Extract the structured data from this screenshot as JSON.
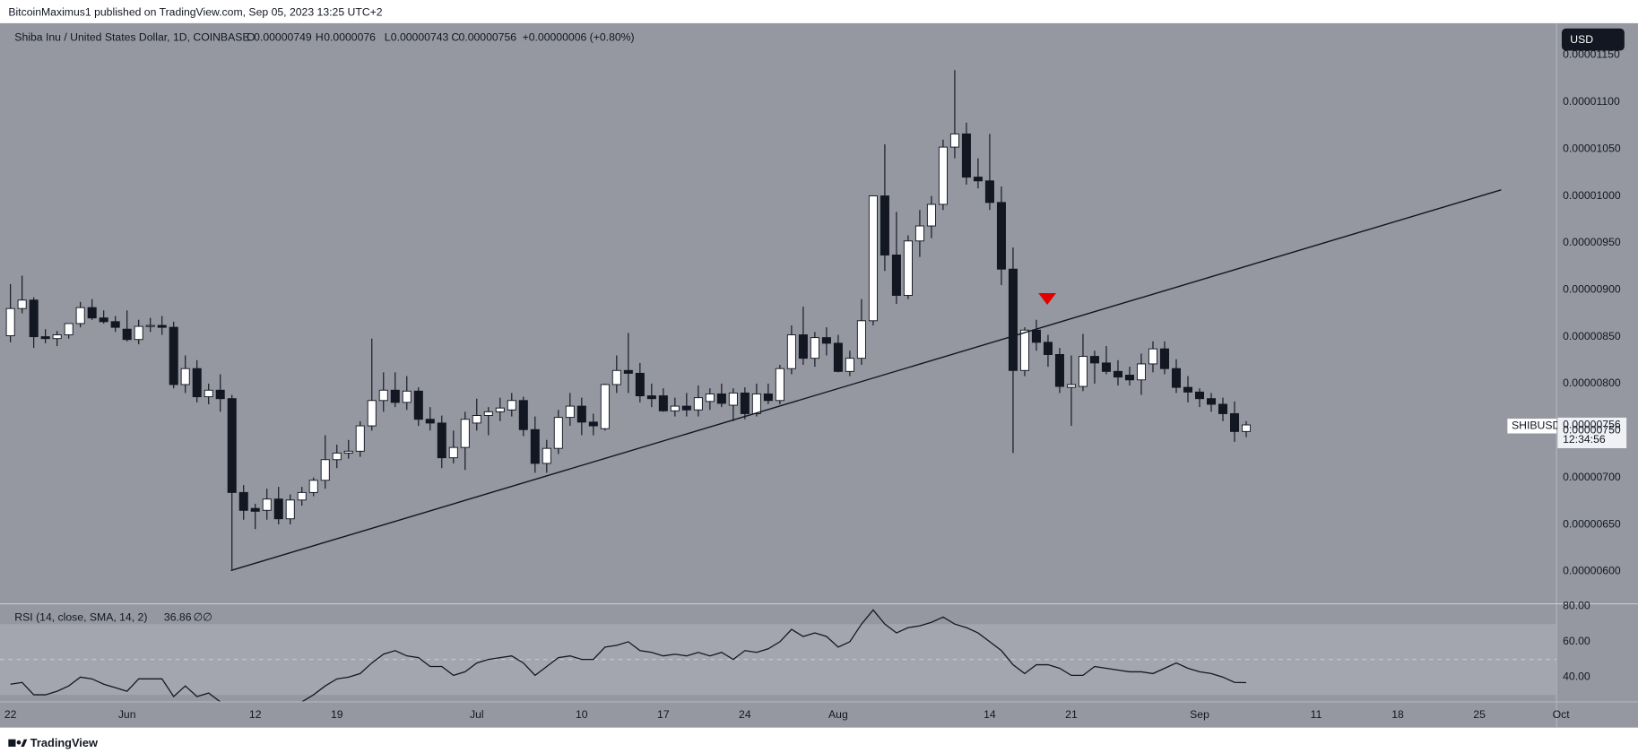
{
  "header": {
    "publisher": "BitcoinMaximus1 published on TradingView.com, Sep 05, 2023 13:25 UTC+2",
    "footer": "TradingView"
  },
  "chart_data": {
    "type": "candlestick",
    "title": "Shiba Inu / United States Dollar, 1D, COINBASE",
    "symbol": "SHIBUSD",
    "currency": "USD",
    "countdown": "12:34:56",
    "change": "+0.00000006 (+0.80%)",
    "legend_keys": [
      "O",
      "H",
      "L",
      "C"
    ],
    "categories": [
      "22",
      null,
      null,
      null,
      null,
      null,
      null,
      null,
      null,
      null,
      "Jun",
      null,
      null,
      null,
      null,
      null,
      null,
      null,
      null,
      null,
      null,
      "12",
      null,
      null,
      null,
      null,
      null,
      null,
      "19",
      null,
      null,
      null,
      null,
      null,
      null,
      null,
      null,
      null,
      null,
      null,
      "Jul",
      null,
      null,
      null,
      null,
      null,
      null,
      null,
      null,
      "10",
      null,
      null,
      null,
      null,
      null,
      null,
      "17",
      null,
      null,
      null,
      null,
      null,
      null,
      "24",
      null,
      null,
      null,
      null,
      null,
      null,
      null,
      "Aug",
      null,
      null,
      null,
      null,
      null,
      null,
      null,
      null,
      null,
      null,
      null,
      null,
      "14",
      null,
      null,
      null,
      null,
      null,
      null,
      "21",
      null,
      null,
      null,
      null,
      null,
      null,
      null,
      null,
      null,
      null,
      "Sep",
      null,
      null,
      null,
      null,
      null,
      null,
      null,
      null,
      null,
      "11",
      null,
      null,
      null,
      null,
      null,
      null,
      "18",
      null,
      null,
      null,
      null,
      null,
      null,
      "25",
      null,
      null,
      null,
      null,
      null,
      null,
      "Oct"
    ],
    "open": [
      8.51e-06,
      8.8e-06,
      8.89e-06,
      8.5e-06,
      8.48e-06,
      8.52e-06,
      8.64e-06,
      8.81e-06,
      8.7e-06,
      8.66e-06,
      8.58e-06,
      8.47e-06,
      8.61e-06,
      8.62e-06,
      8.6e-06,
      7.99e-06,
      8.16e-06,
      7.86e-06,
      7.93e-06,
      7.84e-06,
      6.84e-06,
      6.67e-06,
      6.65e-06,
      6.77e-06,
      6.56e-06,
      6.76e-06,
      6.84e-06,
      6.97e-06,
      7.19e-06,
      7.26e-06,
      7.28e-06,
      7.55e-06,
      7.82e-06,
      7.93e-06,
      7.8e-06,
      7.92e-06,
      7.62e-06,
      7.58e-06,
      7.21e-06,
      7.32e-06,
      7.58e-06,
      7.66e-06,
      7.7e-06,
      7.72e-06,
      7.82e-06,
      7.51e-06,
      7.15e-06,
      7.31e-06,
      7.64e-06,
      7.76e-06,
      7.59e-06,
      7.52e-06,
      7.99e-06,
      8.14e-06,
      8.11e-06,
      7.87e-06,
      7.87e-06,
      7.71e-06,
      7.76e-06,
      7.72e-06,
      7.81e-06,
      7.89e-06,
      7.77e-06,
      7.9e-06,
      7.68e-06,
      7.89e-06,
      7.82e-06,
      8.16e-06,
      8.52e-06,
      8.27e-06,
      8.49e-06,
      8.43e-06,
      8.13e-06,
      8.27e-06,
      8.67e-06,
      1e-05,
      9.37e-06,
      8.94e-06,
      9.52e-06,
      9.68e-06,
      9.91e-06,
      1.052e-05,
      1.066e-05,
      1.02e-05,
      1.016e-05,
      9.93e-06,
      9.22e-06,
      8.14e-06,
      8.57e-06,
      8.44e-06,
      8.31e-06,
      7.96e-06,
      7.97e-06,
      8.29e-06,
      8.22e-06,
      8.13e-06,
      8.09e-06,
      8.04e-06,
      8.21e-06,
      8.37e-06,
      8.16e-06,
      7.96e-06,
      7.91e-06,
      7.84e-06,
      7.78e-06,
      7.68e-06,
      7.49e-06,
      null,
      null,
      null,
      null,
      null,
      null,
      null,
      null,
      null,
      null,
      null,
      null,
      null,
      null,
      null,
      null,
      null,
      null,
      null,
      null,
      null,
      null,
      null,
      null,
      null,
      null,
      null
    ],
    "high": [
      9.06e-06,
      9.15e-06,
      8.92e-06,
      8.58e-06,
      8.56e-06,
      8.62e-06,
      8.87e-06,
      8.9e-06,
      8.78e-06,
      8.72e-06,
      8.78e-06,
      8.68e-06,
      8.7e-06,
      8.72e-06,
      8.66e-06,
      8.3e-06,
      8.25e-06,
      8e-06,
      8.1e-06,
      7.88e-06,
      6.92e-06,
      6.72e-06,
      6.88e-06,
      6.9e-06,
      6.82e-06,
      6.9e-06,
      7e-06,
      7.45e-06,
      7.35e-06,
      7.4e-06,
      7.6e-06,
      8.48e-06,
      8.12e-06,
      8.12e-06,
      8.08e-06,
      7.96e-06,
      7.75e-06,
      7.66e-06,
      7.5e-06,
      7.7e-06,
      7.84e-06,
      7.75e-06,
      7.85e-06,
      7.9e-06,
      7.86e-06,
      7.65e-06,
      7.4e-06,
      7.72e-06,
      7.9e-06,
      7.85e-06,
      7.68e-06,
      8e-06,
      8.3e-06,
      8.54e-06,
      8.22e-06,
      8e-06,
      7.95e-06,
      7.85e-06,
      7.9e-06,
      7.98e-06,
      7.95e-06,
      8e-06,
      7.95e-06,
      7.96e-06,
      8e-06,
      8e-06,
      8.2e-06,
      8.62e-06,
      8.82e-06,
      8.55e-06,
      8.6e-06,
      8.52e-06,
      8.35e-06,
      8.9e-06,
      1e-05,
      1.055e-05,
      9.83e-06,
      9.58e-06,
      9.85e-06,
      1e-05,
      1.06e-05,
      1.134e-05,
      1.078e-05,
      1.04e-05,
      1.066e-05,
      1.01e-05,
      9.45e-06,
      8.6e-06,
      8.68e-06,
      8.52e-06,
      8.38e-06,
      8.3e-06,
      8.53e-06,
      8.35e-06,
      8.4e-06,
      8.25e-06,
      8.18e-06,
      8.32e-06,
      8.45e-06,
      8.45e-06,
      8.26e-06,
      8.08e-06,
      7.95e-06,
      7.9e-06,
      7.85e-06,
      7.81e-06,
      7.6e-06,
      null,
      null,
      null,
      null,
      null,
      null,
      null,
      null,
      null,
      null,
      null,
      null,
      null,
      null,
      null,
      null,
      null,
      null,
      null,
      null,
      null,
      null,
      null,
      null,
      null,
      null,
      null
    ],
    "low": [
      8.44e-06,
      8.75e-06,
      8.38e-06,
      8.43e-06,
      8.4e-06,
      8.48e-06,
      8.6e-06,
      8.68e-06,
      8.64e-06,
      8.55e-06,
      8.45e-06,
      8.42e-06,
      8.55e-06,
      8.52e-06,
      7.95e-06,
      7.9e-06,
      7.8e-06,
      7.78e-06,
      7.7e-06,
      6.02e-06,
      6.55e-06,
      6.45e-06,
      6.55e-06,
      6.5e-06,
      6.5e-06,
      6.7e-06,
      6.8e-06,
      6.88e-06,
      7.1e-06,
      7.2e-06,
      7.22e-06,
      7.5e-06,
      7.7e-06,
      7.75e-06,
      7.72e-06,
      7.55e-06,
      7.5e-06,
      7.1e-06,
      7.15e-06,
      7.08e-06,
      7.5e-06,
      7.45e-06,
      7.6e-06,
      7.65e-06,
      7.44e-06,
      7.05e-06,
      7.05e-06,
      7.25e-06,
      7.55e-06,
      7.45e-06,
      7.45e-06,
      7.5e-06,
      7.9e-06,
      7.9e-06,
      7.8e-06,
      7.75e-06,
      7.7e-06,
      7.65e-06,
      7.65e-06,
      7.65e-06,
      7.72e-06,
      7.75e-06,
      7.6e-06,
      7.62e-06,
      7.65e-06,
      7.78e-06,
      7.78e-06,
      8.1e-06,
      8.2e-06,
      8.18e-06,
      8.3e-06,
      8.12e-06,
      8.08e-06,
      8.2e-06,
      8.62e-06,
      9.2e-06,
      8.85e-06,
      8.9e-06,
      9.35e-06,
      9.55e-06,
      9.85e-06,
      1.04e-05,
      1.012e-05,
      1.008e-05,
      9.85e-06,
      9.05e-06,
      7.26e-06,
      8.08e-06,
      8.35e-06,
      8.18e-06,
      7.9e-06,
      7.55e-06,
      7.92e-06,
      8e-06,
      8.1e-06,
      7.98e-06,
      7.98e-06,
      7.88e-06,
      8.12e-06,
      8.1e-06,
      7.9e-06,
      7.8e-06,
      7.75e-06,
      7.7e-06,
      7.6e-06,
      7.38e-06,
      7.43e-06,
      null,
      null,
      null,
      null,
      null,
      null,
      null,
      null,
      null,
      null,
      null,
      null,
      null,
      null,
      null,
      null,
      null,
      null,
      null,
      null,
      null,
      null,
      null,
      null,
      null,
      null,
      null
    ],
    "close": [
      8.8e-06,
      8.89e-06,
      8.5e-06,
      8.48e-06,
      8.52e-06,
      8.64e-06,
      8.81e-06,
      8.7e-06,
      8.66e-06,
      8.6e-06,
      8.47e-06,
      8.61e-06,
      8.62e-06,
      8.6e-06,
      7.99e-06,
      8.16e-06,
      7.86e-06,
      7.93e-06,
      7.84e-06,
      6.84e-06,
      6.65e-06,
      6.64e-06,
      6.77e-06,
      6.56e-06,
      6.76e-06,
      6.84e-06,
      6.97e-06,
      7.19e-06,
      7.26e-06,
      7.28e-06,
      7.55e-06,
      7.82e-06,
      7.93e-06,
      7.8e-06,
      7.92e-06,
      7.62e-06,
      7.58e-06,
      7.21e-06,
      7.32e-06,
      7.62e-06,
      7.66e-06,
      7.7e-06,
      7.74e-06,
      7.82e-06,
      7.51e-06,
      7.15e-06,
      7.31e-06,
      7.64e-06,
      7.76e-06,
      7.59e-06,
      7.55e-06,
      7.99e-06,
      8.14e-06,
      8.11e-06,
      7.87e-06,
      7.84e-06,
      7.71e-06,
      7.76e-06,
      7.72e-06,
      7.85e-06,
      7.89e-06,
      7.79e-06,
      7.9e-06,
      7.68e-06,
      7.89e-06,
      7.82e-06,
      8.16e-06,
      8.52e-06,
      8.27e-06,
      8.49e-06,
      8.43e-06,
      8.13e-06,
      8.27e-06,
      8.67e-06,
      1e-05,
      9.37e-06,
      8.94e-06,
      9.52e-06,
      9.68e-06,
      9.91e-06,
      1.052e-05,
      1.066e-05,
      1.02e-05,
      1.016e-05,
      9.93e-06,
      9.22e-06,
      8.14e-06,
      8.57e-06,
      8.44e-06,
      8.31e-06,
      7.97e-06,
      7.99e-06,
      8.29e-06,
      8.22e-06,
      8.13e-06,
      8.07e-06,
      8.04e-06,
      8.21e-06,
      8.37e-06,
      8.16e-06,
      7.96e-06,
      7.91e-06,
      7.84e-06,
      7.78e-06,
      7.68e-06,
      7.49e-06,
      7.56e-06,
      null,
      null,
      null,
      null,
      null,
      null,
      null,
      null,
      null,
      null,
      null,
      null,
      null,
      null,
      null,
      null,
      null,
      null,
      null,
      null,
      null,
      null,
      null,
      null,
      null,
      null,
      null
    ],
    "up_color": "#ffffff",
    "down_color": "#131722",
    "ylim": [
      5.66e-06,
      1.184e-05
    ],
    "yticks": [
      {
        "value": 6e-06,
        "label": "0.00000600"
      },
      {
        "value": 6.5e-06,
        "label": "0.00000650"
      },
      {
        "value": 7e-06,
        "label": "0.00000700"
      },
      {
        "value": 7.5e-06,
        "label": "0.00000750"
      },
      {
        "value": 8e-06,
        "label": "0.00000800"
      },
      {
        "value": 8.5e-06,
        "label": "0.00000850"
      },
      {
        "value": 9e-06,
        "label": "0.00000900"
      },
      {
        "value": 9.5e-06,
        "label": "0.00000950"
      },
      {
        "value": 1e-05,
        "label": "0.00001000"
      },
      {
        "value": 1.05e-05,
        "label": "0.00001050"
      },
      {
        "value": 1.1e-05,
        "label": "0.00001100"
      },
      {
        "value": 1.15e-05,
        "label": "0.00001150"
      }
    ],
    "indicator": {
      "type": "line",
      "title": "RSI (14, close, SMA, 14, 2)",
      "na_labels": [
        "∅",
        "∅"
      ],
      "color": "#131722",
      "values": [
        36,
        37,
        30,
        30,
        32,
        35,
        40,
        39,
        36,
        34,
        32,
        39,
        39,
        39,
        29,
        35,
        29,
        31,
        26,
        15,
        18,
        20,
        22,
        19,
        23,
        26,
        30,
        35,
        39,
        40,
        42,
        48,
        53,
        55,
        52,
        51,
        46,
        46,
        41,
        43,
        48,
        50,
        51,
        52,
        48,
        41,
        46,
        51,
        52,
        50,
        50,
        57,
        58,
        60,
        55,
        54,
        52,
        53,
        52,
        54,
        52,
        54,
        50,
        55,
        54,
        56,
        60,
        67,
        63,
        65,
        63,
        57,
        60,
        70,
        78,
        70,
        65,
        68,
        69,
        71,
        74,
        70,
        68,
        65,
        60,
        55,
        47,
        42,
        47,
        47,
        45,
        41,
        41,
        46,
        45,
        44,
        43,
        43,
        42,
        45,
        48,
        45,
        43,
        42,
        40,
        37,
        36.86,
        null,
        null,
        null,
        null,
        null,
        null,
        null,
        null,
        null,
        null,
        null,
        null,
        null,
        null,
        null,
        null,
        null,
        null,
        null,
        null,
        null,
        null,
        null,
        null,
        null,
        null,
        null
      ],
      "ylim": [
        26.3,
        81.2
      ],
      "yticks": [
        {
          "value": 40,
          "label": "40.00"
        },
        {
          "value": 60,
          "label": "60.00"
        },
        {
          "value": 80,
          "label": "80.00"
        }
      ],
      "band": [
        30,
        70
      ],
      "midline": 50
    }
  }
}
